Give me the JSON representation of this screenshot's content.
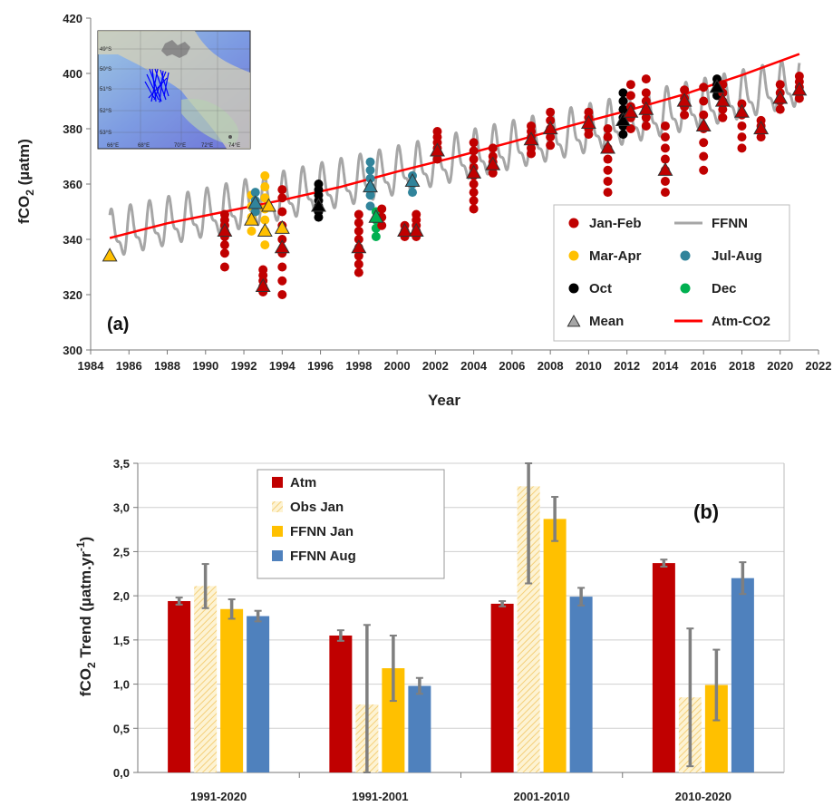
{
  "chart_data": [
    {
      "type": "line",
      "panel_label": "(a)",
      "xlabel": "Year",
      "ylabel": "fCO",
      "ylabel_sub": "2",
      "ylabel_unit": " (µatm)",
      "xlim": [
        1984,
        2022
      ],
      "ylim": [
        300,
        420
      ],
      "xticks": [
        1984,
        1986,
        1988,
        1990,
        1992,
        1994,
        1996,
        1998,
        2000,
        2002,
        2004,
        2006,
        2008,
        2010,
        2012,
        2014,
        2016,
        2018,
        2020,
        2022
      ],
      "yticks": [
        300,
        320,
        340,
        360,
        380,
        400,
        420
      ],
      "grid": false,
      "legend_position": "bottom-right",
      "legend": [
        {
          "label": "Jan-Feb",
          "color": "#c00000",
          "marker": "circle"
        },
        {
          "label": "FFNN",
          "color": "#a6a6a6",
          "marker": "line"
        },
        {
          "label": "Mar-Apr",
          "color": "#ffc000",
          "marker": "circle"
        },
        {
          "label": "Jul-Aug",
          "color": "#31849b",
          "marker": "circle"
        },
        {
          "label": "Oct",
          "color": "#000000",
          "marker": "circle"
        },
        {
          "label": "Dec",
          "color": "#00b050",
          "marker": "circle"
        },
        {
          "label": "Mean",
          "color": "#a6a6a6",
          "marker": "triangle"
        },
        {
          "label": "Atm-CO2",
          "color": "#ff0000",
          "marker": "line"
        }
      ],
      "atm_co2": {
        "x": [
          1985.0,
          1988.0,
          1991.0,
          1994.0,
          1997.0,
          2000.0,
          2003.0,
          2006.0,
          2009.0,
          2012.0,
          2015.0,
          2018.0,
          2021.0
        ],
        "y": [
          340.5,
          345.8,
          350.0,
          354.2,
          358.9,
          364.5,
          369.7,
          375.2,
          381.0,
          386.5,
          392.5,
          399.4,
          407.0
        ]
      },
      "ffnn": {
        "start": 1985.0,
        "end": 2021.0,
        "trend_start": 341.0,
        "trend_end": 396.0,
        "amplitude": 10.0
      },
      "obs_groups": [
        {
          "x": 1991.0,
          "y": [
            330,
            335,
            338,
            341,
            343,
            345,
            347,
            349
          ],
          "color": "#c00000"
        },
        {
          "x": 1992.4,
          "y": [
            343,
            348,
            352,
            356
          ],
          "color": "#ffc000"
        },
        {
          "x": 1992.6,
          "y": [
            350,
            354,
            357
          ],
          "color": "#31849b"
        },
        {
          "x": 1993.1,
          "y": [
            338,
            343,
            347,
            351,
            355,
            359,
            363
          ],
          "color": "#ffc000"
        },
        {
          "x": 1993.0,
          "y": [
            321,
            323,
            325,
            327,
            329
          ],
          "color": "#c00000"
        },
        {
          "x": 1994.0,
          "y": [
            320,
            325,
            330,
            335,
            340,
            345,
            350,
            355,
            358
          ],
          "color": "#c00000"
        },
        {
          "x": 1995.9,
          "y": [
            348,
            350,
            352,
            354,
            356,
            358,
            360
          ],
          "color": "#000000"
        },
        {
          "x": 1998.0,
          "y": [
            328,
            331,
            334,
            337,
            340,
            343,
            346,
            349
          ],
          "color": "#c00000"
        },
        {
          "x": 1998.6,
          "y": [
            352,
            356,
            359,
            362,
            365,
            368
          ],
          "color": "#31849b"
        },
        {
          "x": 1998.9,
          "y": [
            341,
            344,
            347,
            350
          ],
          "color": "#00b050"
        },
        {
          "x": 1999.2,
          "y": [
            345,
            348,
            351
          ],
          "color": "#c00000"
        },
        {
          "x": 2000.4,
          "y": [
            341,
            343,
            345
          ],
          "color": "#c00000"
        },
        {
          "x": 2000.8,
          "y": [
            357,
            360,
            363
          ],
          "color": "#31849b"
        },
        {
          "x": 2001.0,
          "y": [
            341,
            343,
            345,
            347,
            349
          ],
          "color": "#c00000"
        },
        {
          "x": 2002.1,
          "y": [
            369,
            371,
            373,
            375,
            377,
            379
          ],
          "color": "#c00000"
        },
        {
          "x": 2004.0,
          "y": [
            351,
            354,
            357,
            360,
            363,
            366,
            369,
            372,
            375
          ],
          "color": "#c00000"
        },
        {
          "x": 2005.0,
          "y": [
            364,
            366,
            368,
            370,
            373
          ],
          "color": "#c00000"
        },
        {
          "x": 2007.0,
          "y": [
            371,
            373,
            375,
            377,
            379,
            381
          ],
          "color": "#c00000"
        },
        {
          "x": 2008.0,
          "y": [
            374,
            377,
            380,
            383,
            386
          ],
          "color": "#c00000"
        },
        {
          "x": 2010.0,
          "y": [
            378,
            380,
            382,
            384,
            386
          ],
          "color": "#c00000"
        },
        {
          "x": 2011.0,
          "y": [
            357,
            361,
            365,
            369,
            373,
            377,
            380
          ],
          "color": "#c00000"
        },
        {
          "x": 2011.8,
          "y": [
            378,
            381,
            384,
            387,
            390,
            393
          ],
          "color": "#000000"
        },
        {
          "x": 2012.2,
          "y": [
            380,
            384,
            388,
            392,
            396
          ],
          "color": "#c00000"
        },
        {
          "x": 2013.0,
          "y": [
            381,
            384,
            387,
            390,
            393,
            398
          ],
          "color": "#c00000"
        },
        {
          "x": 2014.0,
          "y": [
            357,
            361,
            365,
            369,
            373,
            377,
            381
          ],
          "color": "#c00000"
        },
        {
          "x": 2015.0,
          "y": [
            385,
            388,
            391,
            394
          ],
          "color": "#c00000"
        },
        {
          "x": 2016.0,
          "y": [
            365,
            370,
            375,
            380,
            385,
            390,
            395
          ],
          "color": "#c00000"
        },
        {
          "x": 2016.7,
          "y": [
            392,
            394,
            396,
            398
          ],
          "color": "#000000"
        },
        {
          "x": 2017.0,
          "y": [
            384,
            387,
            390,
            393,
            396
          ],
          "color": "#c00000"
        },
        {
          "x": 2018.0,
          "y": [
            373,
            377,
            381,
            385,
            389
          ],
          "color": "#c00000"
        },
        {
          "x": 2019.0,
          "y": [
            377,
            379,
            381,
            383
          ],
          "color": "#c00000"
        },
        {
          "x": 2020.0,
          "y": [
            387,
            390,
            393,
            396
          ],
          "color": "#c00000"
        },
        {
          "x": 2021.0,
          "y": [
            391,
            393,
            395,
            397,
            399
          ],
          "color": "#c00000"
        }
      ],
      "means": [
        {
          "x": 1985.0,
          "y": 334,
          "color": "#ffc000"
        },
        {
          "x": 1991.0,
          "y": 343,
          "color": "#c00000"
        },
        {
          "x": 1992.4,
          "y": 347,
          "color": "#ffc000"
        },
        {
          "x": 1992.6,
          "y": 353,
          "color": "#31849b"
        },
        {
          "x": 1993.1,
          "y": 343,
          "color": "#ffc000"
        },
        {
          "x": 1993.3,
          "y": 352,
          "color": "#ffc000"
        },
        {
          "x": 1993.0,
          "y": 323,
          "color": "#c00000"
        },
        {
          "x": 1994.0,
          "y": 344,
          "color": "#ffc000"
        },
        {
          "x": 1994.0,
          "y": 337,
          "color": "#c00000"
        },
        {
          "x": 1995.9,
          "y": 352,
          "color": "#000000"
        },
        {
          "x": 1998.0,
          "y": 337,
          "color": "#c00000"
        },
        {
          "x": 1998.6,
          "y": 359,
          "color": "#31849b"
        },
        {
          "x": 1998.9,
          "y": 348,
          "color": "#00b050"
        },
        {
          "x": 2000.4,
          "y": 343,
          "color": "#c00000"
        },
        {
          "x": 2000.8,
          "y": 361,
          "color": "#31849b"
        },
        {
          "x": 2001.0,
          "y": 343,
          "color": "#c00000"
        },
        {
          "x": 2002.1,
          "y": 372,
          "color": "#c00000"
        },
        {
          "x": 2004.0,
          "y": 364,
          "color": "#c00000"
        },
        {
          "x": 2005.0,
          "y": 367,
          "color": "#c00000"
        },
        {
          "x": 2007.0,
          "y": 376,
          "color": "#c00000"
        },
        {
          "x": 2008.0,
          "y": 380,
          "color": "#c00000"
        },
        {
          "x": 2010.0,
          "y": 382,
          "color": "#c00000"
        },
        {
          "x": 2011.0,
          "y": 373,
          "color": "#c00000"
        },
        {
          "x": 2011.8,
          "y": 383,
          "color": "#000000"
        },
        {
          "x": 2012.2,
          "y": 386,
          "color": "#c00000"
        },
        {
          "x": 2013.0,
          "y": 387,
          "color": "#c00000"
        },
        {
          "x": 2014.0,
          "y": 365,
          "color": "#c00000"
        },
        {
          "x": 2015.0,
          "y": 390,
          "color": "#c00000"
        },
        {
          "x": 2016.0,
          "y": 381,
          "color": "#c00000"
        },
        {
          "x": 2016.7,
          "y": 395,
          "color": "#000000"
        },
        {
          "x": 2017.0,
          "y": 390,
          "color": "#c00000"
        },
        {
          "x": 2018.0,
          "y": 386,
          "color": "#c00000"
        },
        {
          "x": 2019.0,
          "y": 380,
          "color": "#c00000"
        },
        {
          "x": 2020.0,
          "y": 391,
          "color": "#c00000"
        },
        {
          "x": 2021.0,
          "y": 394,
          "color": "#c00000"
        }
      ],
      "inset_map": {
        "lat_labels": [
          "49°S",
          "50°S",
          "51°S",
          "52°S",
          "53°S"
        ],
        "lon_labels": [
          "66°E",
          "68°E",
          "70°E",
          "72°E",
          "74°E"
        ]
      }
    },
    {
      "type": "bar",
      "panel_label": "(b)",
      "xlabel": "",
      "ylabel": "fCO",
      "ylabel_sub": "2",
      "ylabel_mid": " Trend (µatm.yr",
      "ylabel_sup": "-1",
      "ylabel_end": ")",
      "ylim": [
        0,
        3.5
      ],
      "yticks": [
        "0,0",
        "0,5",
        "1,0",
        "1,5",
        "2,0",
        "2,5",
        "3,0",
        "3,5"
      ],
      "grid": true,
      "legend_position": "top-left",
      "categories": [
        "1991-2020",
        "1991-2001",
        "2001-2010",
        "2010-2020"
      ],
      "series": [
        {
          "name": "Atm",
          "color": "#c00000",
          "pattern": false,
          "values": [
            1.94,
            1.55,
            1.91,
            2.37
          ],
          "errors": [
            0.04,
            0.06,
            0.03,
            0.04
          ]
        },
        {
          "name": "Obs Jan",
          "color": "#fde9a9",
          "pattern": true,
          "values": [
            2.11,
            0.77,
            3.24,
            0.85
          ],
          "errors": [
            0.25,
            0.9,
            1.1,
            0.78
          ]
        },
        {
          "name": "FFNN Jan",
          "color": "#ffc000",
          "pattern": false,
          "values": [
            1.85,
            1.18,
            2.87,
            0.99
          ],
          "errors": [
            0.11,
            0.37,
            0.25,
            0.4
          ]
        },
        {
          "name": "FFNN Aug",
          "color": "#4f81bd",
          "pattern": false,
          "values": [
            1.77,
            0.98,
            1.99,
            2.2
          ],
          "errors": [
            0.06,
            0.09,
            0.1,
            0.18
          ]
        }
      ]
    }
  ]
}
